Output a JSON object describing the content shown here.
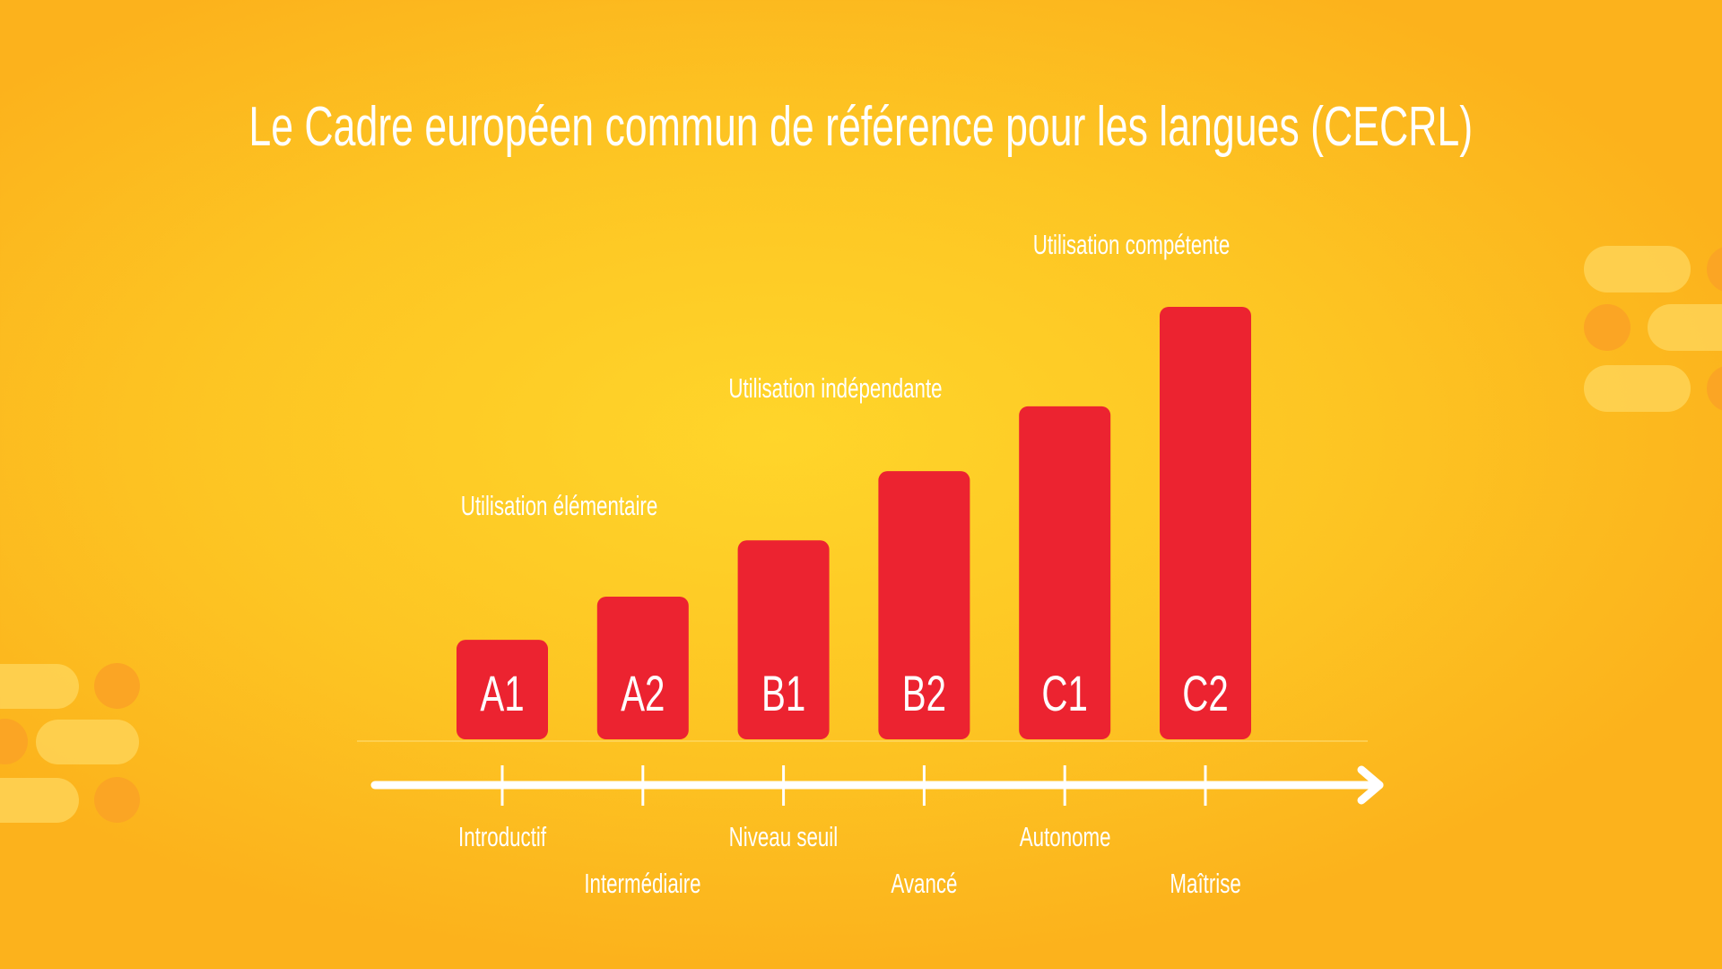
{
  "title": "Le Cadre européen commun de référence pour les langues (CECRL)",
  "colors": {
    "background": "#fdc523",
    "bar": "#ec2330",
    "text": "#ffffff",
    "axis": "#ffffff"
  },
  "chart_data": {
    "type": "bar",
    "title": "Le Cadre européen commun de référence pour les langues (CECRL)",
    "categories": [
      "A1",
      "A2",
      "B1",
      "B2",
      "C1",
      "C2"
    ],
    "values": [
      23,
      33,
      46,
      62,
      77,
      100
    ],
    "level_names": [
      "Introductif",
      "Intermédiaire",
      "Niveau seuil",
      "Avancé",
      "Autonome",
      "Maîtrise"
    ],
    "groups": [
      {
        "label": "Utilisation élémentaire",
        "levels": [
          "A1",
          "A2"
        ]
      },
      {
        "label": "Utilisation indépendante",
        "levels": [
          "B1",
          "B2"
        ]
      },
      {
        "label": "Utilisation compétente",
        "levels": [
          "C1",
          "C2"
        ]
      }
    ],
    "xlabel": "",
    "ylabel": "",
    "grid": false,
    "legend": "none",
    "axis_arrow": true
  }
}
